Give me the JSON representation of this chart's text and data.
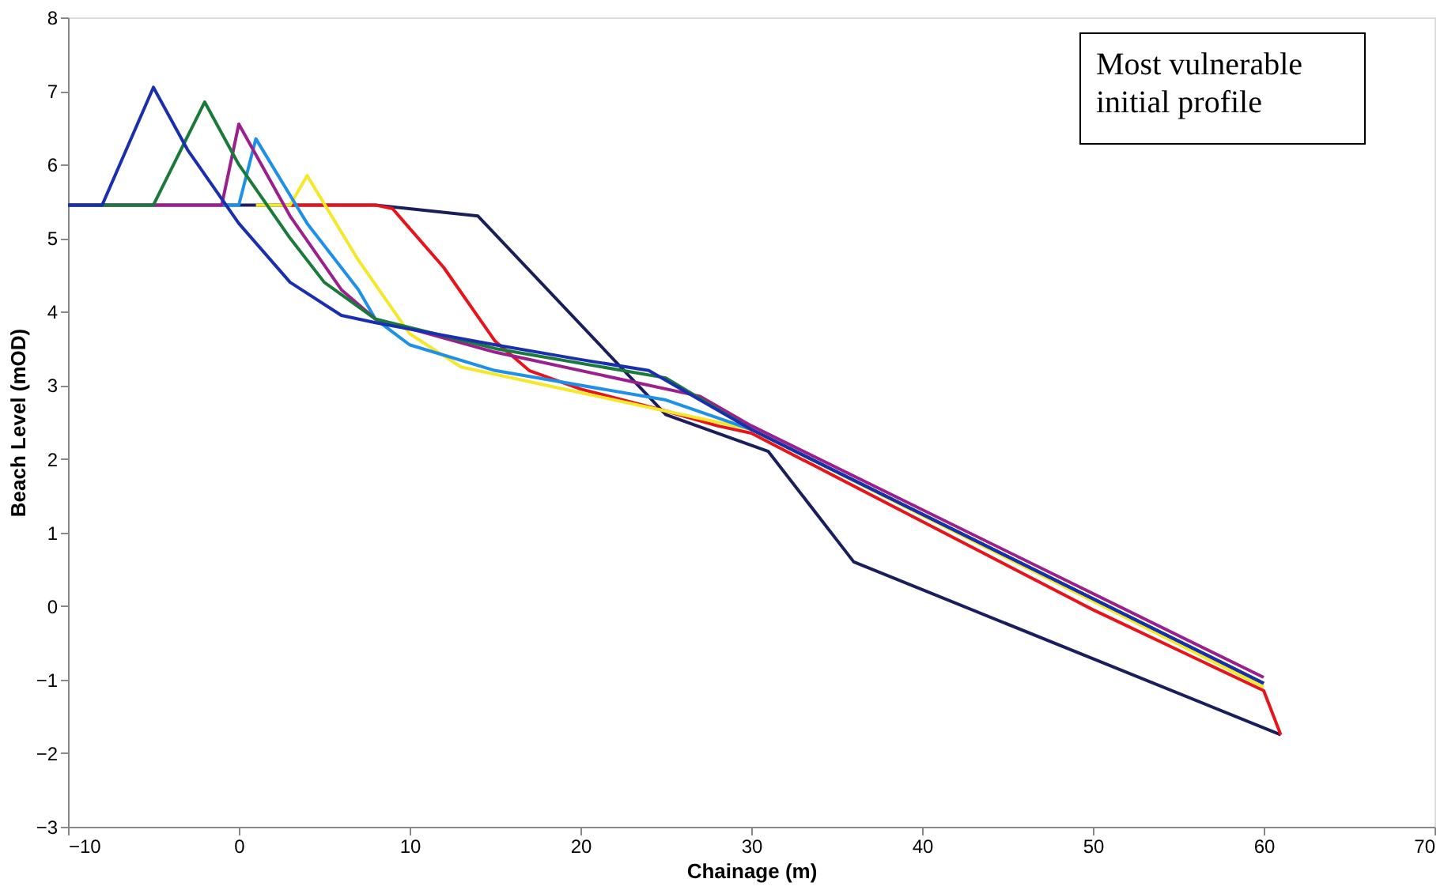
{
  "chart_data": {
    "type": "line",
    "xlabel": "Chainage (m)",
    "ylabel": "Beach Level (mOD)",
    "annotations": [
      "Most vulnerable initial profile"
    ],
    "xlim": [
      -10,
      70
    ],
    "xticks": [
      -10,
      0,
      10,
      20,
      30,
      40,
      50,
      60,
      70
    ],
    "ylim": [
      -3,
      8
    ],
    "yticks": [
      -3,
      -2,
      -1,
      0,
      1,
      2,
      3,
      4,
      5,
      6,
      7,
      8
    ],
    "grid": false,
    "legend": false,
    "marker": "none",
    "line_style": "solid",
    "series": [
      {
        "color": "#1a1f5c",
        "x": [
          -10,
          8,
          14,
          25,
          31,
          36,
          61
        ],
        "values": [
          5.45,
          5.45,
          5.3,
          2.6,
          2.1,
          0.6,
          -1.75
        ]
      },
      {
        "color": "#e8141b",
        "x": [
          3,
          8,
          9,
          12,
          15,
          17,
          20,
          25,
          28,
          30,
          50,
          60,
          61
        ],
        "values": [
          5.45,
          5.45,
          5.4,
          4.6,
          3.6,
          3.2,
          2.95,
          2.65,
          2.45,
          2.35,
          -0.05,
          -1.15,
          -1.75
        ]
      },
      {
        "color": "#f5e82a",
        "x": [
          1,
          3,
          4,
          7,
          10,
          13,
          20,
          28,
          30,
          60
        ],
        "values": [
          5.45,
          5.45,
          5.85,
          4.7,
          3.7,
          3.25,
          2.9,
          2.5,
          2.4,
          -1.1
        ]
      },
      {
        "color": "#1e90e8",
        "x": [
          -1,
          0,
          1,
          4,
          7,
          8,
          10,
          15,
          25,
          30,
          60
        ],
        "values": [
          5.45,
          5.45,
          6.35,
          5.2,
          4.3,
          3.9,
          3.55,
          3.2,
          2.8,
          2.4,
          -1.05
        ]
      },
      {
        "color": "#9b1f8c",
        "x": [
          -10,
          -1,
          0,
          3,
          6,
          8,
          15,
          27,
          30,
          60
        ],
        "values": [
          5.45,
          5.45,
          6.55,
          5.3,
          4.3,
          3.9,
          3.45,
          2.85,
          2.45,
          -0.97
        ]
      },
      {
        "color": "#1a7a3a",
        "x": [
          -10,
          -5,
          -2,
          0,
          3,
          5,
          8,
          15,
          25,
          30,
          60
        ],
        "values": [
          5.45,
          5.45,
          6.85,
          6.0,
          5.0,
          4.4,
          3.9,
          3.5,
          3.1,
          2.4,
          -1.05
        ]
      },
      {
        "color": "#1a2fb0",
        "x": [
          -10,
          -8,
          -5,
          -3,
          0,
          3,
          6,
          8,
          15,
          20,
          24,
          30,
          60
        ],
        "values": [
          5.45,
          5.45,
          7.05,
          6.2,
          5.2,
          4.4,
          3.95,
          3.85,
          3.55,
          3.35,
          3.2,
          2.4,
          -1.05
        ]
      }
    ]
  }
}
